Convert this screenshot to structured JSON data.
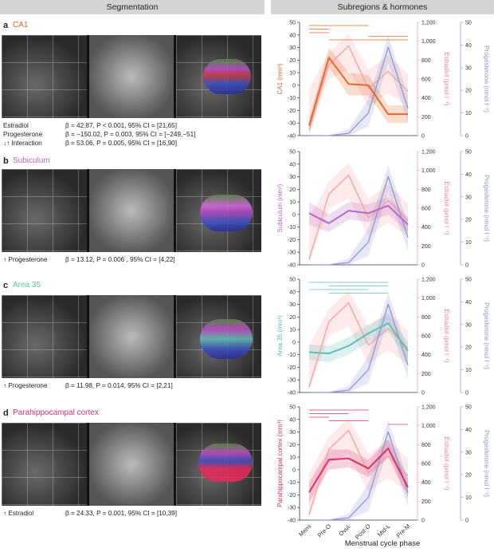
{
  "headers": {
    "left": "Segmentation",
    "right": "Subregions & hormones"
  },
  "panels": [
    {
      "letter": "a",
      "title": "CA1",
      "color": "#e4692a",
      "stats": [
        {
          "arrow": "",
          "label": "Estradiol",
          "text": "β = 42.87, P < 0.001, 95% CI = [21,65]"
        },
        {
          "arrow": "",
          "label": "Progesterone",
          "text": "β = −150.02, P = 0.003, 95% CI = [−249,−51]"
        },
        {
          "arrow": "↓↑",
          "label": "Interaction",
          "text": "β = 53.06, P = 0.005, 95% CI = [16,90]"
        }
      ]
    },
    {
      "letter": "b",
      "title": "Subiculum",
      "color": "#b76bc4",
      "stats": [
        {
          "arrow": "↑",
          "label": "Progesterone",
          "text": "β = 13.12, P = 0.006 , 95% CI = [4,22]"
        }
      ]
    },
    {
      "letter": "c",
      "title": "Area 35",
      "color": "#5fbfb5",
      "stats": [
        {
          "arrow": "↑",
          "label": "Progesterone",
          "text": "β = 11.98, P = 0.014, 95% CI = [2,21]"
        }
      ]
    },
    {
      "letter": "d",
      "title": "Parahippocampal cortex",
      "color": "#d6336c",
      "stats": [
        {
          "arrow": "↑",
          "label": "Estradiol",
          "text": "β = 24.33, P = 0.001, 95% CI = [10,39]"
        }
      ]
    }
  ],
  "axes": {
    "xlabel": "Menstrual cycle phase",
    "right1_label": "Estradiol (pmol l⁻¹)",
    "right2_label": "Progesterone (nmol l⁻¹)"
  },
  "chart_data": [
    {
      "type": "line",
      "ylabel": "CA1 (mm³)",
      "categories": [
        "Mens",
        "Pre-O",
        "Ovul.",
        "Post-O",
        "Mid-L",
        "Pre-M"
      ],
      "ylim": [
        -40,
        50
      ],
      "yticks": [
        -40,
        -30,
        -20,
        -10,
        0,
        10,
        20,
        30,
        40,
        50
      ],
      "y2lim": [
        0,
        1200
      ],
      "y2ticks": [
        "0",
        "200",
        "400",
        "600",
        "800",
        "1,000",
        "1,200"
      ],
      "y3lim": [
        0,
        50
      ],
      "y3ticks": [
        0,
        10,
        20,
        30,
        40,
        50
      ],
      "series": [
        {
          "values": [
            -32,
            22,
            1,
            0,
            -23,
            -23
          ],
          "color": "#e4692a"
        },
        {
          "values": [
            60,
            750,
            950,
            500,
            680,
            470
          ],
          "color": "#f5a0a0"
        },
        {
          "values": [
            0,
            0,
            1,
            10,
            39,
            12
          ],
          "color": "#8f96cf"
        }
      ],
      "bands": {
        "hormone_e": [
          [
            20,
            500
          ],
          [
            600,
            880
          ],
          [
            700,
            1080
          ],
          [
            300,
            700
          ],
          [
            450,
            850
          ],
          [
            300,
            650
          ]
        ],
        "hormone_p": [
          [
            0,
            0
          ],
          [
            0,
            0
          ],
          [
            0,
            3
          ],
          [
            4,
            16
          ],
          [
            32,
            44
          ],
          [
            6,
            18
          ]
        ],
        "volume_spread": [
          [
            -38,
            -26
          ],
          [
            14,
            30
          ],
          [
            -8,
            10
          ],
          [
            -8,
            8
          ],
          [
            -30,
            -16
          ],
          [
            -30,
            -16
          ]
        ]
      },
      "sig_bars": [
        [
          0,
          3
        ],
        [
          0,
          1
        ],
        [
          0,
          1
        ],
        [
          3,
          5
        ],
        [
          1,
          5
        ]
      ]
    },
    {
      "type": "line",
      "ylabel": "Subiculum (mm³)",
      "categories": [
        "Mens",
        "Pre-O",
        "Ovul.",
        "Post-O",
        "Mid-L",
        "Pre-M"
      ],
      "ylim": [
        -40,
        50
      ],
      "yticks": [
        -40,
        -30,
        -20,
        -10,
        0,
        10,
        20,
        30,
        40,
        50
      ],
      "y2lim": [
        0,
        1200
      ],
      "y2ticks": [
        "0",
        "200",
        "400",
        "600",
        "800",
        "1,000",
        "1,200"
      ],
      "y3lim": [
        0,
        50
      ],
      "y3ticks": [
        0,
        10,
        20,
        30,
        40,
        50
      ],
      "series": [
        {
          "values": [
            1,
            -7,
            3,
            1,
            7,
            -8
          ],
          "color": "#b76bc4"
        },
        {
          "values": [
            60,
            750,
            950,
            500,
            680,
            470
          ],
          "color": "#f5a0a0"
        },
        {
          "values": [
            0,
            0,
            1,
            10,
            39,
            12
          ],
          "color": "#8f96cf"
        }
      ],
      "bands": {
        "hormone_e": [
          [
            20,
            500
          ],
          [
            600,
            880
          ],
          [
            700,
            1080
          ],
          [
            300,
            700
          ],
          [
            450,
            850
          ],
          [
            300,
            650
          ]
        ],
        "hormone_p": [
          [
            0,
            0
          ],
          [
            0,
            0
          ],
          [
            0,
            3
          ],
          [
            4,
            16
          ],
          [
            32,
            44
          ],
          [
            6,
            18
          ]
        ],
        "volume_spread": [
          [
            -8,
            10
          ],
          [
            -14,
            0
          ],
          [
            -4,
            10
          ],
          [
            -6,
            8
          ],
          [
            0,
            14
          ],
          [
            -14,
            -2
          ]
        ]
      },
      "sig_bars": []
    },
    {
      "type": "line",
      "ylabel": "Area 35 (mm³)",
      "categories": [
        "Mens",
        "Pre-O",
        "Ovul.",
        "Post-O",
        "Mid-L",
        "Pre-M"
      ],
      "ylim": [
        -40,
        50
      ],
      "yticks": [
        -40,
        -30,
        -20,
        -10,
        0,
        10,
        20,
        30,
        40,
        50
      ],
      "y2lim": [
        0,
        1200
      ],
      "y2ticks": [
        "0",
        "200",
        "400",
        "600",
        "800",
        "1,000",
        "1,200"
      ],
      "y3lim": [
        0,
        50
      ],
      "y3ticks": [
        0,
        10,
        20,
        30,
        40,
        50
      ],
      "series": [
        {
          "values": [
            -8,
            -9,
            -3,
            7,
            15,
            -7
          ],
          "color": "#5fbfb5"
        },
        {
          "values": [
            60,
            750,
            950,
            500,
            680,
            470
          ],
          "color": "#f5a0a0"
        },
        {
          "values": [
            0,
            0,
            1,
            10,
            39,
            12
          ],
          "color": "#8f96cf"
        }
      ],
      "bands": {
        "hormone_e": [
          [
            20,
            500
          ],
          [
            600,
            880
          ],
          [
            700,
            1080
          ],
          [
            300,
            700
          ],
          [
            450,
            850
          ],
          [
            300,
            650
          ]
        ],
        "hormone_p": [
          [
            0,
            0
          ],
          [
            0,
            0
          ],
          [
            0,
            3
          ],
          [
            4,
            16
          ],
          [
            32,
            44
          ],
          [
            6,
            18
          ]
        ],
        "volume_spread": [
          [
            -14,
            -2
          ],
          [
            -16,
            -3
          ],
          [
            -10,
            4
          ],
          [
            0,
            14
          ],
          [
            8,
            22
          ],
          [
            -14,
            0
          ]
        ]
      },
      "sig_bars": [
        [
          0,
          4
        ],
        [
          1,
          4
        ],
        [
          0,
          3
        ],
        [
          1,
          4
        ]
      ]
    },
    {
      "type": "line",
      "ylabel": "Parahippocampal cortex (mm³)",
      "categories": [
        "Mens",
        "Pre-O",
        "Ovul.",
        "Post-O",
        "Mid-L",
        "Pre-M"
      ],
      "ylim": [
        -40,
        50
      ],
      "yticks": [
        -40,
        -30,
        -20,
        -10,
        0,
        10,
        20,
        30,
        40,
        50
      ],
      "y2lim": [
        0,
        1200
      ],
      "y2ticks": [
        "0",
        "200",
        "400",
        "600",
        "800",
        "1,000",
        "1,200"
      ],
      "y3lim": [
        0,
        50
      ],
      "y3ticks": [
        0,
        10,
        20,
        30,
        40,
        50
      ],
      "series": [
        {
          "values": [
            -18,
            8,
            9,
            1,
            17,
            -14
          ],
          "color": "#d6336c"
        },
        {
          "values": [
            60,
            750,
            950,
            500,
            680,
            470
          ],
          "color": "#f5a0a0"
        },
        {
          "values": [
            0,
            0,
            1,
            10,
            39,
            12
          ],
          "color": "#8f96cf"
        }
      ],
      "bands": {
        "hormone_e": [
          [
            20,
            500
          ],
          [
            600,
            880
          ],
          [
            700,
            1080
          ],
          [
            300,
            700
          ],
          [
            450,
            850
          ],
          [
            300,
            650
          ]
        ],
        "hormone_p": [
          [
            0,
            0
          ],
          [
            0,
            0
          ],
          [
            0,
            3
          ],
          [
            4,
            16
          ],
          [
            32,
            44
          ],
          [
            6,
            18
          ]
        ],
        "volume_spread": [
          [
            -26,
            -10
          ],
          [
            0,
            16
          ],
          [
            2,
            16
          ],
          [
            -6,
            8
          ],
          [
            10,
            24
          ],
          [
            -22,
            -6
          ]
        ]
      },
      "sig_bars": [
        [
          0,
          3
        ],
        [
          0,
          2
        ],
        [
          0,
          1
        ],
        [
          1,
          3
        ],
        [
          4,
          5
        ]
      ]
    }
  ]
}
